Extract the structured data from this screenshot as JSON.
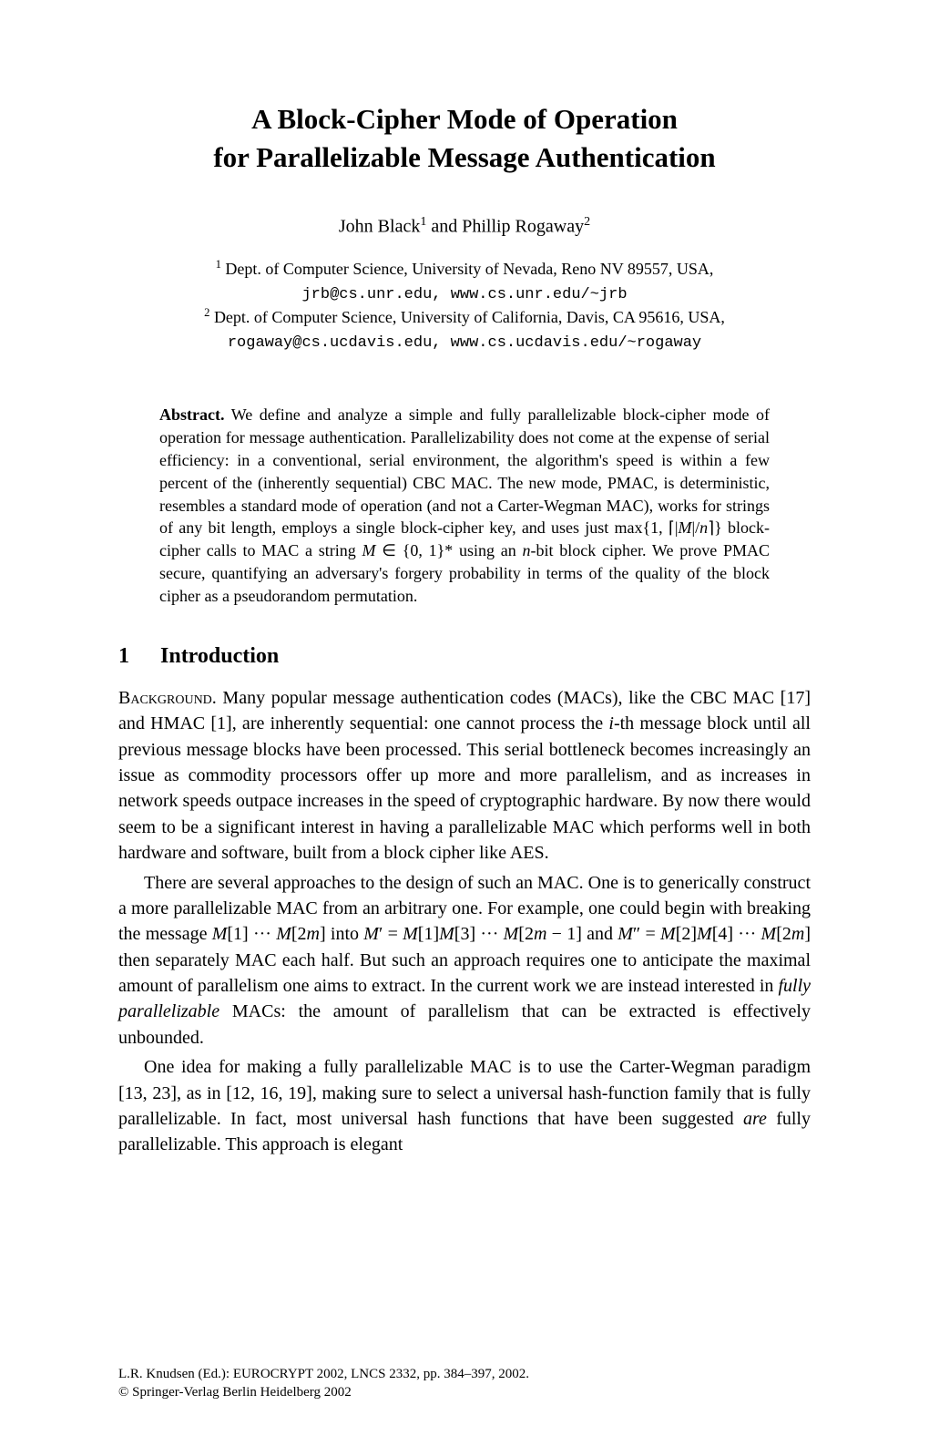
{
  "title_line1": "A Block-Cipher Mode of Operation",
  "title_line2": "for Parallelizable Message Authentication",
  "authors_html": "John Black<sup>1</sup> and Phillip Rogaway<sup>2</sup>",
  "affil1_sup": "1",
  "affil1_text": " Dept. of Computer Science, University of Nevada, Reno NV 89557, USA,",
  "affil1_tt": "jrb@cs.unr.edu, www.cs.unr.edu/~jrb",
  "affil2_sup": "2",
  "affil2_text": " Dept. of Computer Science, University of California, Davis, CA 95616, USA,",
  "affil2_tt": "rogaway@cs.ucdavis.edu, www.cs.ucdavis.edu/~rogaway",
  "abstract_label": "Abstract.",
  "abstract_body": " We define and analyze a simple and fully parallelizable block-cipher mode of operation for message authentication. Parallelizability does not come at the expense of serial efficiency: in a conventional, serial environment, the algorithm's speed is within a few percent of the (inherently sequential) CBC MAC. The new mode, PMAC, is deterministic, resembles a standard mode of operation (and not a Carter-Wegman MAC), works for strings of any bit length, employs a single block-cipher key, and uses just max{1, ⌈|M|/n⌉} block-cipher calls to MAC a string M ∈ {0, 1}* using an n-bit block cipher. We prove PMAC secure, quantifying an adversary's forgery probability in terms of the quality of the block cipher as a pseudorandom permutation.",
  "section1_num": "1",
  "section1_title": "Introduction",
  "para1_label": "Background.",
  "para1_text": " Many popular message authentication codes (MACs), like the CBC MAC [17] and HMAC [1], are inherently sequential: one cannot process the i-th message block until all previous message blocks have been processed. This serial bottleneck becomes increasingly an issue as commodity processors offer up more and more parallelism, and as increases in network speeds outpace increases in the speed of cryptographic hardware. By now there would seem to be a significant interest in having a parallelizable MAC which performs well in both hardware and software, built from a block cipher like AES.",
  "para2_text": "There are several approaches to the design of such an MAC. One is to generically construct a more parallelizable MAC from an arbitrary one. For example, one could begin with breaking the message M[1] ··· M[2m] into M′ = M[1]M[3] ··· M[2m − 1] and M″ = M[2]M[4] ··· M[2m] then separately MAC each half. But such an approach requires one to anticipate the maximal amount of parallelism one aims to extract. In the current work we are instead interested in fully parallelizable MACs: the amount of parallelism that can be extracted is effectively unbounded.",
  "para3_text": "One idea for making a fully parallelizable MAC is to use the Carter-Wegman paradigm [13, 23], as in [12, 16, 19], making sure to select a universal hash-function family that is fully parallelizable. In fact, most universal hash functions that have been suggested are fully parallelizable. This approach is elegant",
  "footer_line1": "L.R. Knudsen (Ed.): EUROCRYPT 2002, LNCS 2332, pp. 384–397, 2002.",
  "footer_line2": "© Springer-Verlag Berlin Heidelberg 2002"
}
